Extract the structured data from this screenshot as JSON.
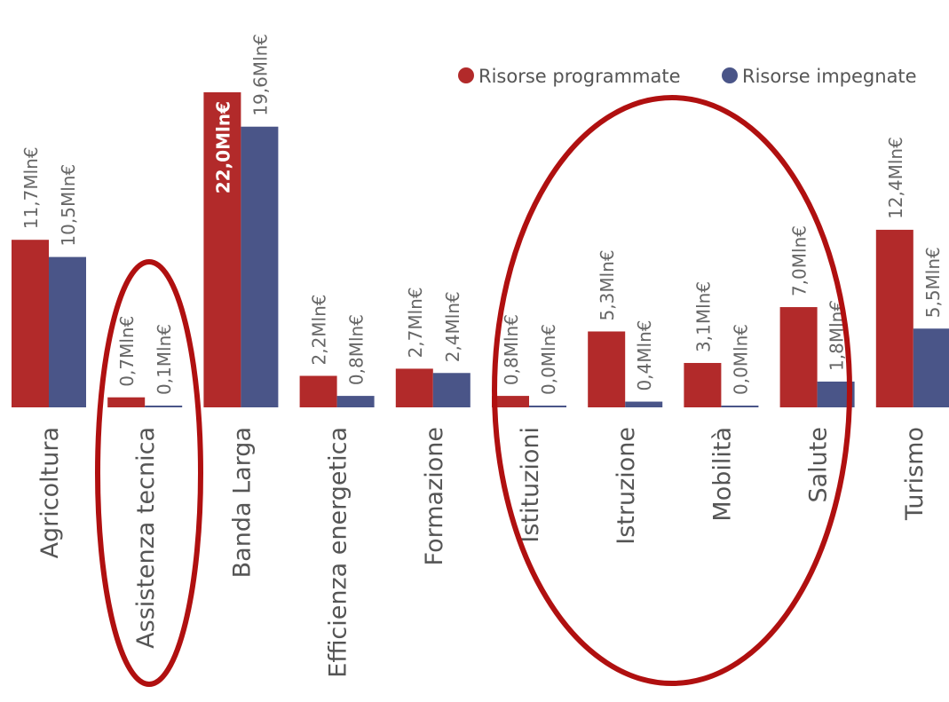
{
  "chart_data": {
    "type": "bar",
    "categories": [
      "Agricoltura",
      "Assistenza tecnica",
      "Banda Larga",
      "Efficienza energetica",
      "Formazione",
      "Istituzioni",
      "Istruzione",
      "Mobilità",
      "Salute",
      "Turismo"
    ],
    "series": [
      {
        "name": "Risorse programmate",
        "color": "#b22a2a",
        "values": [
          11.7,
          0.7,
          22.0,
          2.2,
          2.7,
          0.8,
          5.3,
          3.1,
          7.0,
          12.4
        ],
        "labels": [
          "11,7Mln€",
          "0,7Mln€",
          "22,0Mln€",
          "2,2Mln€",
          "2,7Mln€",
          "0,8Mln€",
          "5,3Mln€",
          "3,1Mln€",
          "7,0Mln€",
          "12,4Mln€"
        ]
      },
      {
        "name": "Risorse impegnate",
        "color": "#4a5588",
        "values": [
          10.5,
          0.1,
          19.6,
          0.8,
          2.4,
          0.0,
          0.4,
          0.0,
          1.8,
          5.5
        ],
        "labels": [
          "10,5Mln€",
          "0,1Mln€",
          "19,6Mln€",
          "0,8Mln€",
          "2,4Mln€",
          "0,0Mln€",
          "0,4Mln€",
          "0,0Mln€",
          "1,8Mln€",
          "5,5Mln€"
        ]
      }
    ],
    "legend_position": "top-right",
    "grid": false,
    "ylim": [
      0,
      22.0
    ],
    "annotations": [
      {
        "type": "ellipse",
        "color": "#b01010",
        "around": [
          "Assistenza tecnica"
        ]
      },
      {
        "type": "ellipse",
        "color": "#b01010",
        "around": [
          "Istituzioni",
          "Istruzione",
          "Mobilità",
          "Salute"
        ]
      }
    ]
  }
}
